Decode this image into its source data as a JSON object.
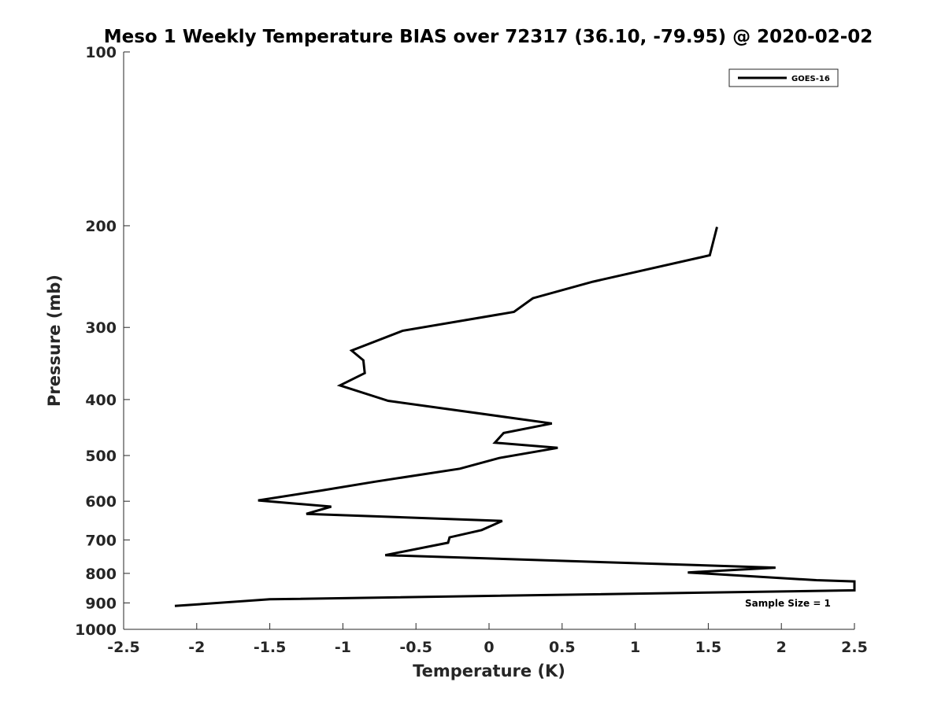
{
  "chart_data": {
    "type": "line",
    "title": "Meso 1 Weekly Temperature BIAS over 72317 (36.10, -79.95) @ 2020-02-02",
    "xlabel": "Temperature (K)",
    "ylabel": "Pressure (mb)",
    "xlim": [
      -2.5,
      2.5
    ],
    "ylim": [
      100,
      1000
    ],
    "y_scale": "log",
    "y_reversed": true,
    "x_ticks": [
      "-2.5",
      "-2",
      "-1.5",
      "-1",
      "-0.5",
      "0",
      "0.5",
      "1",
      "1.5",
      "2",
      "2.5"
    ],
    "y_ticks": [
      "100",
      "200",
      "300",
      "400",
      "500",
      "600",
      "700",
      "800",
      "900",
      "1000"
    ],
    "grid": false,
    "legend": {
      "position": "top-right",
      "entries": [
        "GOES-16"
      ]
    },
    "annotations": [
      "Sample Size = 1"
    ],
    "series": [
      {
        "name": "GOES-16",
        "color": "#000000",
        "x": [
          1.56,
          1.51,
          0.71,
          0.3,
          0.17,
          -0.59,
          -0.94,
          -0.86,
          -0.85,
          -1.02,
          -0.69,
          0.43,
          0.1,
          0.04,
          0.47,
          0.07,
          -0.2,
          -0.78,
          -1.15,
          -1.58,
          -1.08,
          -1.25,
          0.09,
          -0.05,
          -0.27,
          -0.28,
          -0.71,
          1.96,
          1.36,
          2.24,
          2.5,
          2.5,
          -1.5,
          -2.15
        ],
        "y": [
          201,
          225,
          250,
          267,
          282,
          304,
          329,
          342,
          360,
          378,
          402,
          440,
          457,
          475,
          485,
          505,
          527,
          555,
          575,
          598,
          613,
          631,
          649,
          673,
          693,
          708,
          744,
          782,
          797,
          822,
          826,
          856,
          887,
          911
        ]
      }
    ]
  }
}
